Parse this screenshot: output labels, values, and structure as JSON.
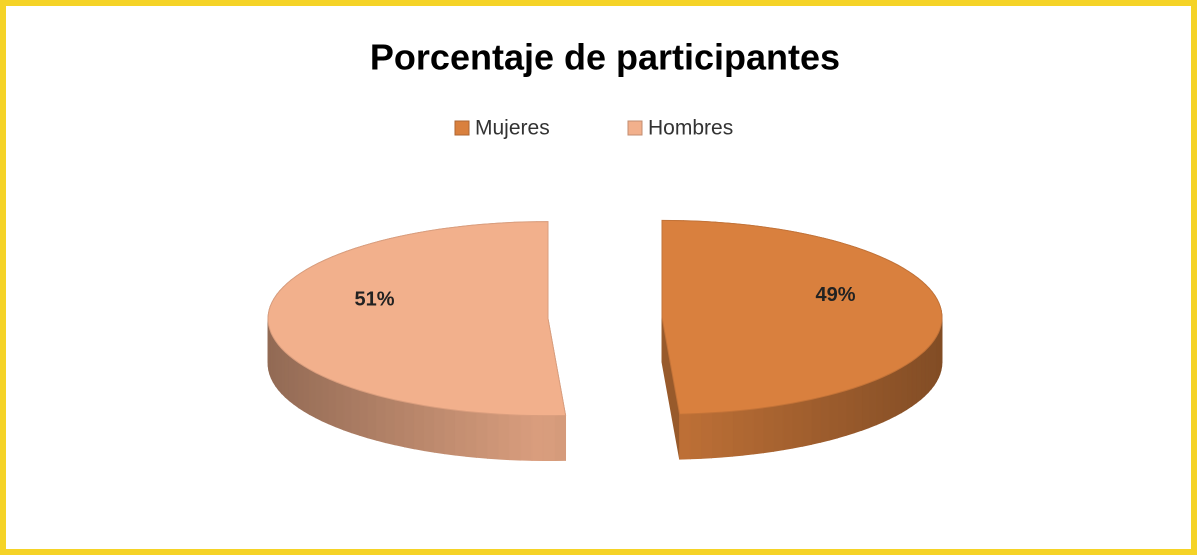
{
  "chart_data": {
    "type": "pie",
    "title": "Porcentaje de participantes",
    "categories": [
      "Mujeres",
      "Hombres"
    ],
    "values": [
      49,
      51
    ],
    "value_labels": [
      "49%",
      "51%"
    ],
    "colors": [
      "#d9803e",
      "#f2b08c"
    ],
    "legend": "top"
  }
}
